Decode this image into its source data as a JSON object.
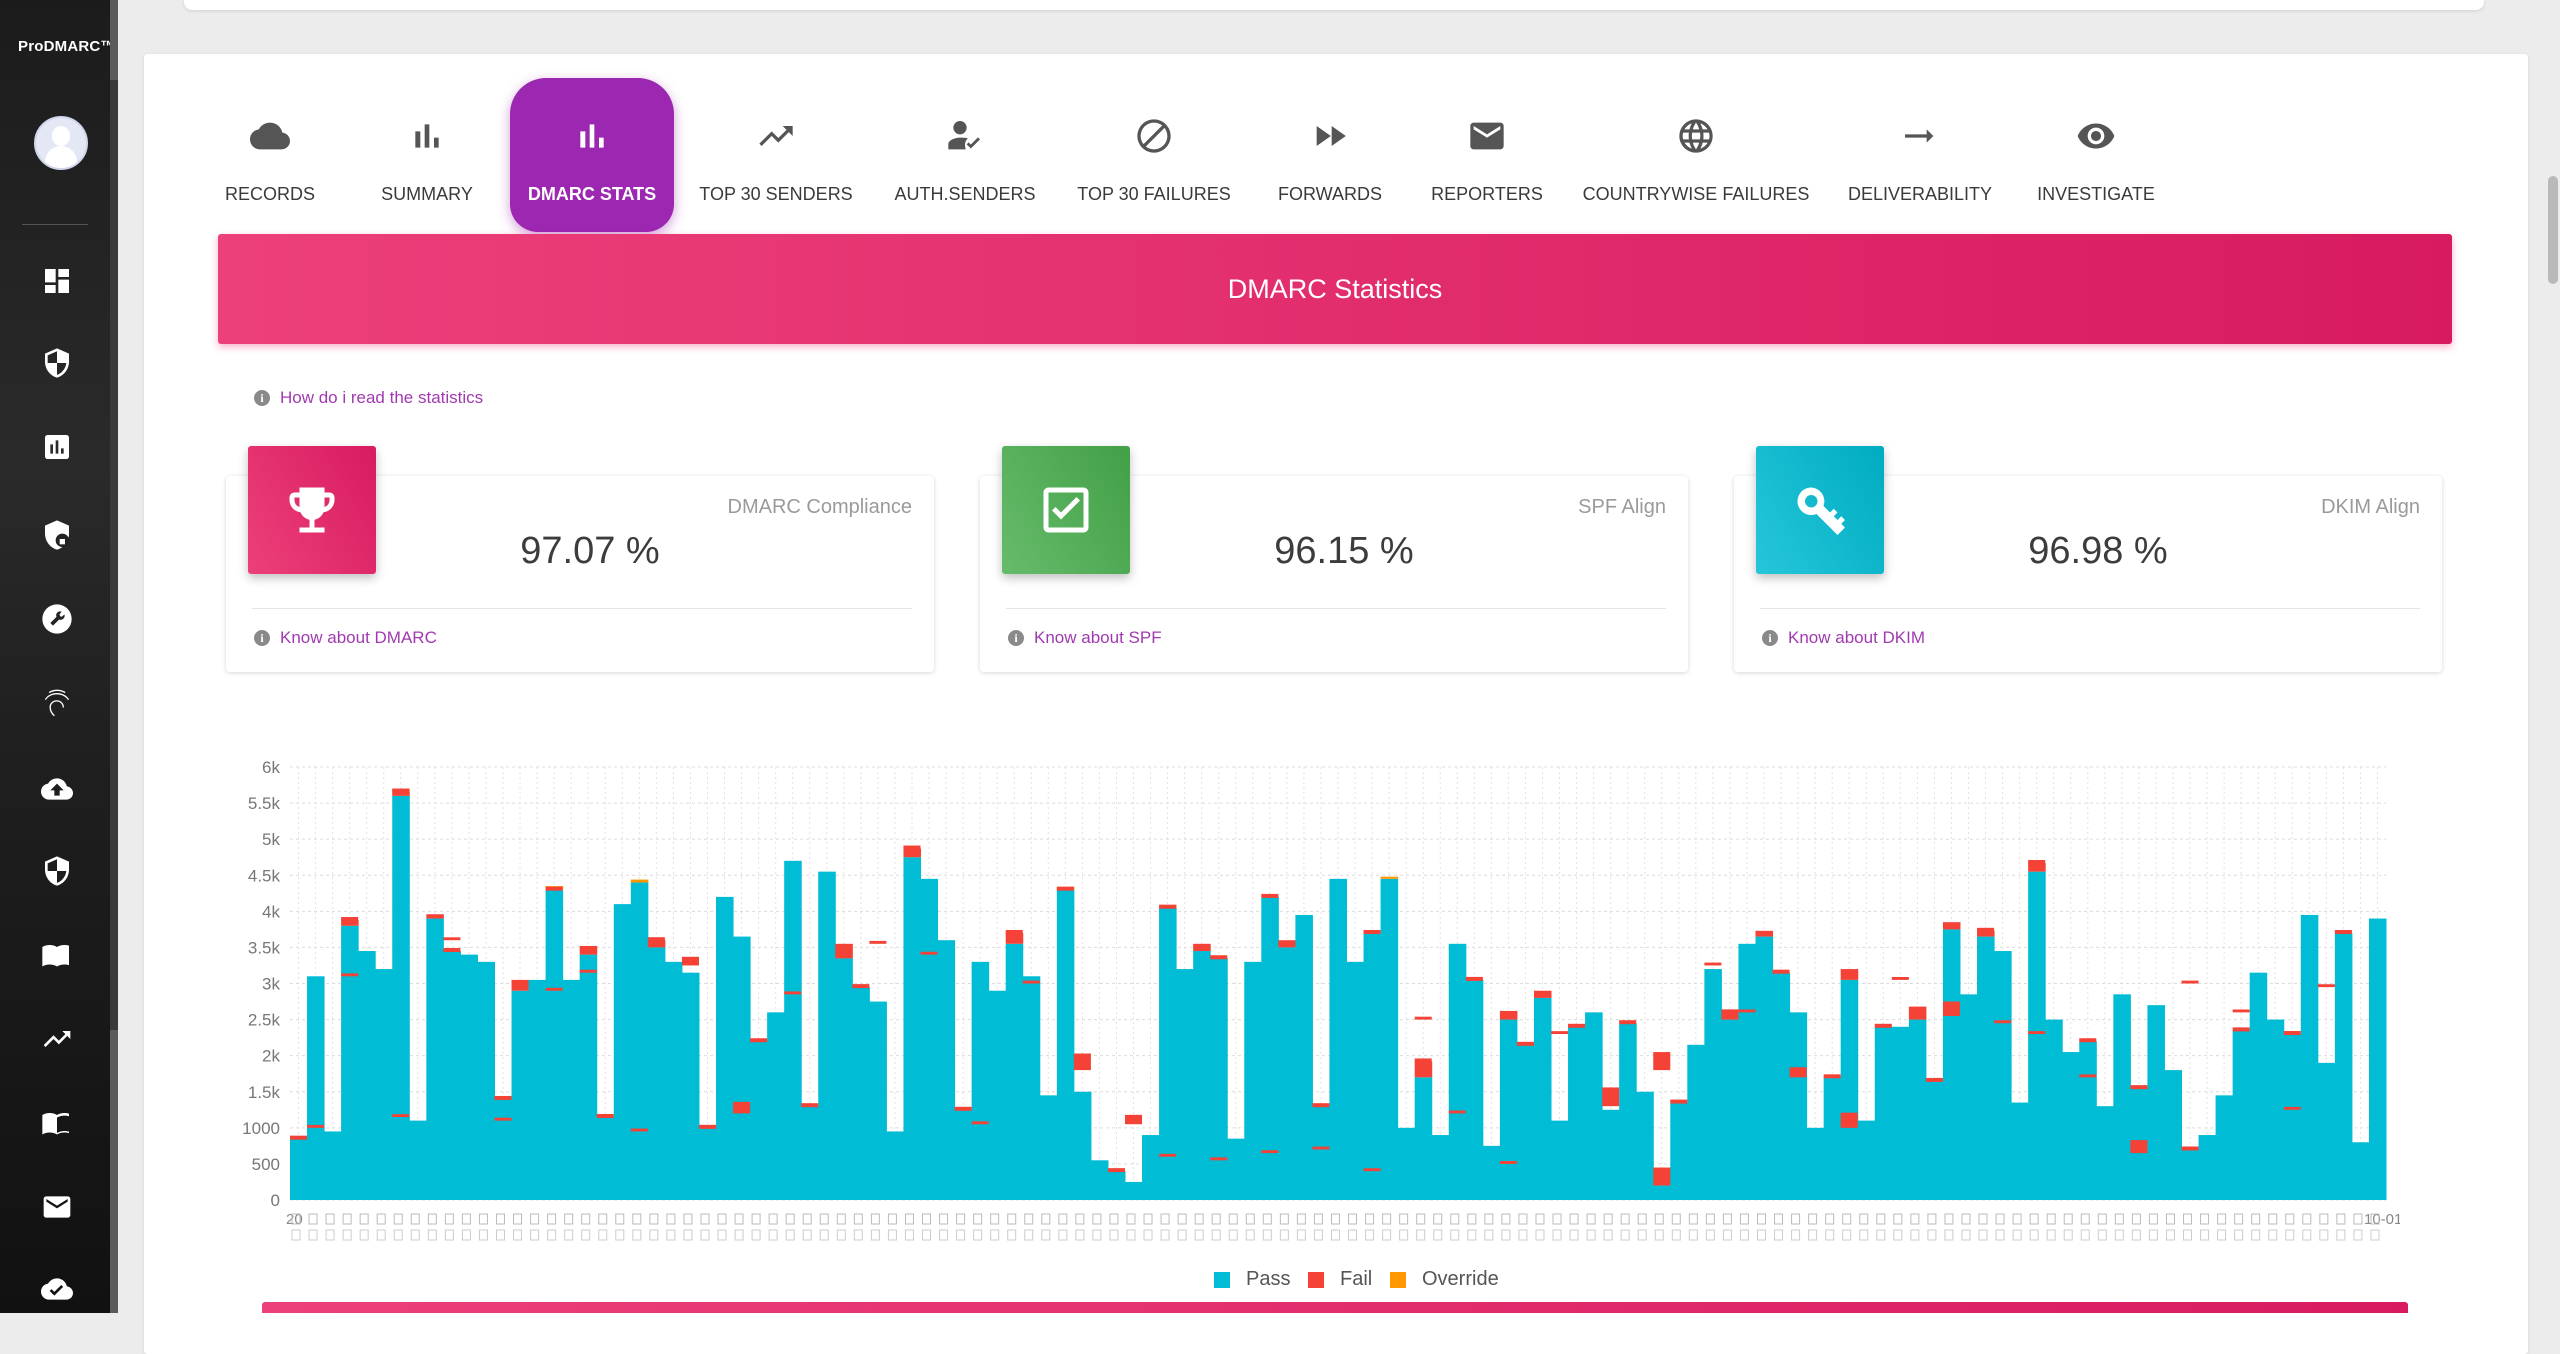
{
  "app": {
    "brand": "ProDMARC™"
  },
  "sidebar": {
    "avatar": "user-avatar",
    "items": [
      {
        "icon": "dashboard-icon"
      },
      {
        "icon": "shield-icon"
      },
      {
        "icon": "report-chart-icon"
      },
      {
        "icon": "shield-lock-icon"
      },
      {
        "icon": "wrench-icon"
      },
      {
        "icon": "fingerprint-icon"
      },
      {
        "icon": "cloud-upload-icon"
      },
      {
        "icon": "security-icon"
      },
      {
        "icon": "book-icon"
      },
      {
        "icon": "trending-up-icon"
      },
      {
        "icon": "book-open-icon"
      },
      {
        "icon": "mail-icon"
      },
      {
        "icon": "cloud-check-icon"
      }
    ]
  },
  "tabs": [
    {
      "label": "RECORDS",
      "icon": "cloud-icon",
      "active": false
    },
    {
      "label": "SUMMARY",
      "icon": "bar-chart-icon",
      "active": false
    },
    {
      "label": "DMARC STATS",
      "icon": "bar-chart-icon",
      "active": true
    },
    {
      "label": "TOP 30 SENDERS",
      "icon": "trending-up-icon",
      "active": false
    },
    {
      "label": "AUTH.SENDERS",
      "icon": "user-check-icon",
      "active": false
    },
    {
      "label": "TOP 30 FAILURES",
      "icon": "block-icon",
      "active": false
    },
    {
      "label": "FORWARDS",
      "icon": "fast-forward-icon",
      "active": false
    },
    {
      "label": "REPORTERS",
      "icon": "mail-icon",
      "active": false
    },
    {
      "label": "COUNTRYWISE FAILURES",
      "icon": "globe-icon",
      "active": false
    },
    {
      "label": "DELIVERABILITY",
      "icon": "arrow-right-icon",
      "active": false
    },
    {
      "label": "INVESTIGATE",
      "icon": "eye-icon",
      "active": false
    }
  ],
  "banner": {
    "title": "DMARC Statistics"
  },
  "help": {
    "label": "How do i read the statistics"
  },
  "stats": [
    {
      "title": "DMARC Compliance",
      "value": "97.07 %",
      "link": "Know about DMARC",
      "icon": "trophy-icon",
      "color": "#e91e63"
    },
    {
      "title": "SPF Align",
      "value": "96.15 %",
      "link": "Know about SPF",
      "icon": "check-box-icon",
      "color": "#4caf50"
    },
    {
      "title": "DKIM Align",
      "value": "96.98 %",
      "link": "Know about DKIM",
      "icon": "key-icon",
      "color": "#00acc1"
    }
  ],
  "chart_data": {
    "type": "bar",
    "stacked": true,
    "y_ticks": [
      "0",
      "500",
      "1000",
      "1.5k",
      "2k",
      "2.5k",
      "3k",
      "3.5k",
      "4k",
      "4.5k",
      "5k",
      "5.5k",
      "6k"
    ],
    "ylim": [
      0,
      6000
    ],
    "x_tick_labels": [
      "20",
      "10-01"
    ],
    "grid": "dotted vertical and horizontal",
    "series": [
      {
        "name": "Pass",
        "color": "#00bcd4"
      },
      {
        "name": "Fail",
        "color": "#f44336"
      },
      {
        "name": "Override",
        "color": "#ff9800"
      }
    ],
    "pass": [
      850,
      3100,
      950,
      3800,
      3450,
      3200,
      5600,
      1100,
      3900,
      3450,
      3400,
      3300,
      1400,
      2900,
      3050,
      4300,
      3050,
      3400,
      1150,
      4100,
      4400,
      3500,
      3300,
      3150,
      1000,
      4200,
      3650,
      2200,
      2600,
      4700,
      1300,
      4550,
      3350,
      2950,
      2750,
      950,
      4750,
      4450,
      3600,
      1250,
      3300,
      2900,
      3550,
      3100,
      1450,
      4300,
      1500,
      550,
      400,
      250,
      900,
      4050,
      3200,
      3450,
      3350,
      850,
      3300,
      4200,
      3500,
      3950,
      1300,
      4450,
      3300,
      3700,
      4450,
      1000,
      1700,
      900,
      3550,
      3050,
      750,
      2500,
      2150,
      2800,
      1100,
      2400,
      2600,
      1250,
      2450,
      1500,
      200,
      1350,
      2150,
      3200,
      2500,
      3550,
      3650,
      3150,
      2600,
      1000,
      1700,
      3050,
      1100,
      2400,
      2400,
      2500,
      1650,
      3750,
      2850,
      3650,
      3450,
      1350,
      4550,
      2500,
      2050,
      2200,
      1300,
      2850,
      1550,
      2700,
      1800,
      700,
      900,
      1450,
      2350,
      3150,
      2500,
      2300,
      3950,
      1900,
      3700,
      800,
      3900
    ],
    "fail": [
      0,
      0,
      0,
      80,
      0,
      0,
      60,
      0,
      60,
      0,
      0,
      0,
      0,
      150,
      0,
      0,
      0,
      120,
      0,
      0,
      0,
      100,
      0,
      0,
      0,
      0,
      0,
      0,
      0,
      0,
      0,
      0,
      200,
      0,
      0,
      0,
      120,
      0,
      0,
      0,
      0,
      0,
      150,
      0,
      0,
      0,
      0,
      0,
      0,
      0,
      0,
      0,
      0,
      100,
      0,
      0,
      0,
      0,
      100,
      0,
      0,
      0,
      0,
      0,
      0,
      0,
      220,
      0,
      0,
      0,
      0,
      120,
      0,
      100,
      0,
      0,
      0,
      0,
      0,
      0,
      250,
      0,
      0,
      0,
      100,
      0,
      80,
      0,
      0,
      0,
      0,
      150,
      0,
      0,
      0,
      180,
      0,
      100,
      0,
      80,
      0,
      0,
      120,
      0,
      0,
      0,
      0,
      0,
      0,
      0,
      0,
      0,
      0,
      0,
      0,
      0,
      0,
      0,
      0,
      0,
      0
    ],
    "override": [
      0,
      0,
      0,
      0,
      0,
      0,
      40,
      0,
      0,
      0,
      0,
      0,
      0,
      0,
      0,
      50,
      0,
      0,
      0,
      0,
      40,
      0,
      0,
      0,
      0,
      0,
      0,
      0,
      0,
      0,
      0,
      0,
      0,
      0,
      0,
      0,
      0,
      0,
      0,
      0,
      0,
      0,
      0,
      0,
      0,
      40,
      0,
      0,
      0,
      0,
      0,
      40,
      0,
      0,
      0,
      0,
      0,
      0,
      0,
      0,
      0,
      0,
      0,
      0,
      30,
      0,
      0,
      0,
      0,
      0,
      0,
      0,
      0,
      0,
      0,
      0,
      0,
      0,
      0,
      0,
      0,
      0,
      0,
      0,
      0,
      0,
      0,
      0,
      0,
      0,
      0,
      0,
      0,
      0,
      0,
      0,
      0,
      0,
      0,
      0,
      0,
      0,
      0,
      0,
      0,
      0,
      0,
      0,
      0,
      0,
      0,
      0,
      0,
      0,
      0,
      0,
      0,
      0,
      0,
      0,
      0
    ],
    "fail_marks": [
      1000,
      3100,
      1150,
      3600,
      1100,
      2900,
      3150,
      950,
      3250,
      1200,
      2850,
      3350,
      3550,
      3400,
      1050,
      3000,
      1800,
      1050,
      600,
      550,
      650,
      700,
      400,
      2500,
      1200,
      500,
      2300,
      1300,
      1800,
      3250,
      2600,
      1700,
      1000,
      3050,
      2550,
      2450,
      2300,
      1700,
      650,
      3000,
      2600,
      1250,
      2950
    ],
    "fail_mark_heights": [
      40,
      40,
      40,
      40,
      40,
      40,
      40,
      40,
      120,
      160,
      40,
      40,
      40,
      40,
      40,
      40,
      230,
      130,
      40,
      40,
      40,
      40,
      40,
      40,
      40,
      40,
      40,
      260,
      250,
      40,
      40,
      140,
      210,
      40,
      200,
      40,
      40,
      40,
      180,
      40,
      40,
      40,
      40
    ]
  },
  "legend": [
    {
      "label": "Pass",
      "color": "#00bcd4"
    },
    {
      "label": "Fail",
      "color": "#f44336"
    },
    {
      "label": "Override",
      "color": "#ff9800"
    }
  ]
}
